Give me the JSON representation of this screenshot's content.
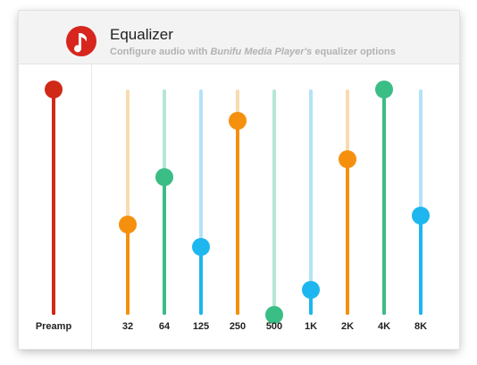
{
  "header": {
    "title": "Equalizer",
    "subtitle_prefix": "Configure audio with ",
    "subtitle_app": "Bunifu Media Player's",
    "subtitle_suffix": " equalizer options",
    "logo_icon": "music-note-icon",
    "logo_color": "#d7261e"
  },
  "preamp": {
    "label": "Preamp",
    "value": 1.0,
    "color": "#d02918",
    "track_color": "#d02918"
  },
  "bands": [
    {
      "label": "32",
      "value": 0.4,
      "color": "#f5900e",
      "track_color": "#f8dbb0"
    },
    {
      "label": "64",
      "value": 0.61,
      "color": "#3bbd86",
      "track_color": "#b6e6d4"
    },
    {
      "label": "125",
      "value": 0.3,
      "color": "#1eb6ee",
      "track_color": "#b4e2f7"
    },
    {
      "label": "250",
      "value": 0.86,
      "color": "#f5900e",
      "track_color": "#f8dbb0"
    },
    {
      "label": "500",
      "value": 0.0,
      "color": "#3bbd86",
      "track_color": "#b6e6d4"
    },
    {
      "label": "1K",
      "value": 0.11,
      "color": "#1eb6ee",
      "track_color": "#b4e2f7"
    },
    {
      "label": "2K",
      "value": 0.69,
      "color": "#f5900e",
      "track_color": "#f8dbb0"
    },
    {
      "label": "4K",
      "value": 1.0,
      "color": "#3bbd86",
      "track_color": "#b6e6d4"
    },
    {
      "label": "8K",
      "value": 0.44,
      "color": "#1eb6ee",
      "track_color": "#b4e2f7"
    }
  ]
}
